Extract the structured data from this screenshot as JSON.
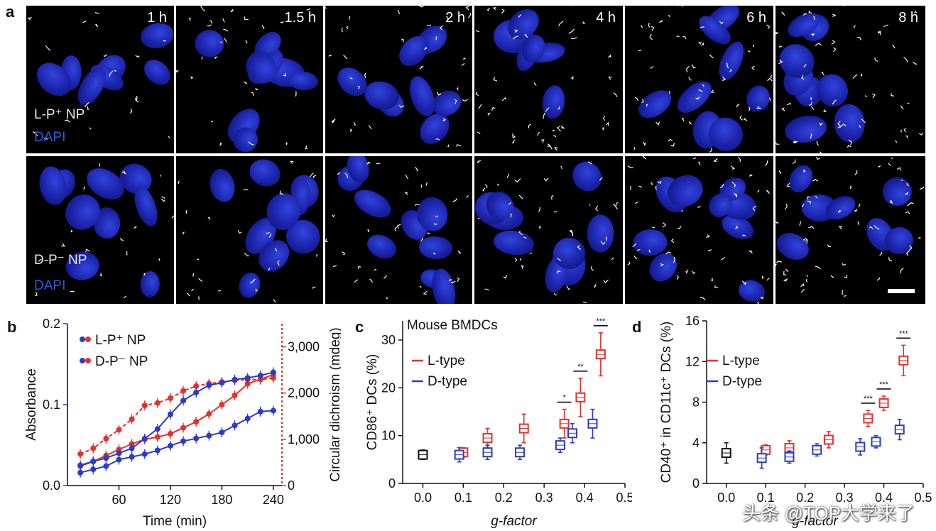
{
  "panels": {
    "a": {
      "letter": "a",
      "times": [
        "1 h",
        "1.5 h",
        "2 h",
        "4 h",
        "6 h",
        "8 h"
      ],
      "row1_label1": "L-P⁺ NP",
      "row1_label2": "DAPI",
      "row2_label1": "D-P⁻ NP",
      "row2_label2": "DAPI"
    },
    "b": {
      "letter": "b"
    },
    "c": {
      "letter": "c"
    },
    "d": {
      "letter": "d"
    }
  },
  "colors": {
    "red": "#e8302a",
    "blue": "#2b3bc8",
    "black": "#111111"
  },
  "watermark": "头条 @TOP大学来了",
  "chart_data": [
    {
      "id": "b",
      "type": "line",
      "title": "",
      "xlabel": "Time (min)",
      "ylabel_left": "Absorbance",
      "ylabel_right": "Circular dichroism (mdeg)",
      "xlim": [
        0,
        250
      ],
      "ylim_left": [
        0,
        0.2
      ],
      "ylim_right": [
        0,
        3500
      ],
      "xticks": [
        60,
        120,
        180,
        240
      ],
      "xtick_labels": [
        "60",
        "120",
        "180",
        "240"
      ],
      "yticks_left": [
        0.0,
        0.1,
        0.2
      ],
      "ytick_labels_left": [
        "0.0",
        "0.1",
        "0.2"
      ],
      "yticks_right": [
        0,
        1000,
        2000,
        3000
      ],
      "ytick_labels_right": [
        "0",
        "1,000",
        "2,000",
        "3,000"
      ],
      "legend": [
        "L-P⁺ NP",
        "D-P⁻ NP"
      ],
      "x": [
        15,
        30,
        45,
        60,
        75,
        90,
        105,
        120,
        135,
        150,
        165,
        180,
        195,
        210,
        225,
        240
      ],
      "series": [
        {
          "name": "L-P⁺ NP absorbance",
          "color": "red",
          "axis": "left",
          "style": "dashed",
          "values": [
            0.039,
            0.046,
            0.058,
            0.069,
            0.082,
            0.099,
            0.102,
            0.108,
            0.117,
            0.123,
            0.126,
            0.128,
            0.13,
            0.131,
            0.131,
            0.133
          ]
        },
        {
          "name": "L-P⁺ NP CD",
          "color": "red",
          "axis": "right",
          "style": "solid",
          "values": [
            420,
            520,
            650,
            780,
            900,
            1000,
            1050,
            1120,
            1250,
            1380,
            1550,
            1750,
            1950,
            2200,
            2300,
            2400
          ]
        },
        {
          "name": "D-P⁻ NP absorbance",
          "color": "blue",
          "axis": "left",
          "style": "solid",
          "values": [
            0.025,
            0.03,
            0.034,
            0.04,
            0.046,
            0.058,
            0.07,
            0.088,
            0.105,
            0.115,
            0.124,
            0.127,
            0.131,
            0.133,
            0.136,
            0.14
          ]
        },
        {
          "name": "D-P⁻ NP CD",
          "color": "blue",
          "axis": "right",
          "style": "solid",
          "values": [
            280,
            350,
            420,
            560,
            620,
            680,
            760,
            860,
            960,
            1020,
            1080,
            1150,
            1300,
            1450,
            1600,
            1620
          ]
        }
      ]
    },
    {
      "id": "c",
      "type": "scatter",
      "title": "Mouse BMDCs",
      "xlabel": "g-factor",
      "ylabel": "CD86⁺ DCs (%)",
      "xlim": [
        -0.05,
        0.5
      ],
      "ylim": [
        0,
        34
      ],
      "xticks": [
        0.0,
        0.1,
        0.2,
        0.3,
        0.4,
        0.5
      ],
      "xtick_labels": [
        "0.0",
        "0.1",
        "0.2",
        "0.3",
        "0.4",
        "0.5"
      ],
      "yticks": [
        0,
        10,
        20,
        30
      ],
      "ytick_labels": [
        "0",
        "10",
        "20",
        "30"
      ],
      "legend": [
        "L-type",
        "D-type"
      ],
      "significance": [
        "*",
        "**",
        "***"
      ],
      "series": [
        {
          "name": "control",
          "color": "black",
          "points": [
            {
              "x": 0.0,
              "y": 6,
              "err": 1
            }
          ]
        },
        {
          "name": "L-type",
          "color": "red",
          "points": [
            {
              "x": 0.1,
              "y": 6.5,
              "err": 1
            },
            {
              "x": 0.16,
              "y": 9.5,
              "err": 2
            },
            {
              "x": 0.25,
              "y": 11.5,
              "err": 3
            },
            {
              "x": 0.35,
              "y": 12.5,
              "err": 3
            },
            {
              "x": 0.39,
              "y": 18,
              "err": 4
            },
            {
              "x": 0.44,
              "y": 27,
              "err": 4.5
            }
          ]
        },
        {
          "name": "D-type",
          "color": "blue",
          "points": [
            {
              "x": 0.09,
              "y": 6,
              "err": 1.5
            },
            {
              "x": 0.16,
              "y": 6.5,
              "err": 1.5
            },
            {
              "x": 0.24,
              "y": 6.5,
              "err": 1.5
            },
            {
              "x": 0.34,
              "y": 8,
              "err": 1.5
            },
            {
              "x": 0.37,
              "y": 10.5,
              "err": 2
            },
            {
              "x": 0.42,
              "y": 12.5,
              "err": 3
            }
          ]
        }
      ]
    },
    {
      "id": "d",
      "type": "scatter",
      "title": "",
      "xlabel": "g-factor",
      "ylabel": "CD40⁺ in CD11c⁺ DCs (%)",
      "xlim": [
        -0.05,
        0.5
      ],
      "ylim": [
        0,
        16
      ],
      "xticks": [
        0.0,
        0.1,
        0.2,
        0.3,
        0.4,
        0.5
      ],
      "xtick_labels": [
        "0.0",
        "0.1",
        "0.2",
        "0.3",
        "0.4",
        "0.5"
      ],
      "yticks": [
        0,
        4,
        8,
        12,
        16
      ],
      "ytick_labels": [
        "0",
        "4",
        "8",
        "12",
        "16"
      ],
      "legend": [
        "L-type",
        "D-type"
      ],
      "significance": [
        "***",
        "***",
        "***"
      ],
      "series": [
        {
          "name": "control",
          "color": "black",
          "points": [
            {
              "x": 0.0,
              "y": 3,
              "err": 1
            }
          ]
        },
        {
          "name": "L-type",
          "color": "red",
          "points": [
            {
              "x": 0.1,
              "y": 3.3,
              "err": 0.5
            },
            {
              "x": 0.16,
              "y": 3.5,
              "err": 0.7
            },
            {
              "x": 0.26,
              "y": 4.3,
              "err": 0.8
            },
            {
              "x": 0.36,
              "y": 6.4,
              "err": 0.8
            },
            {
              "x": 0.4,
              "y": 7.9,
              "err": 0.7
            },
            {
              "x": 0.45,
              "y": 12.1,
              "err": 1.5
            }
          ]
        },
        {
          "name": "D-type",
          "color": "blue",
          "points": [
            {
              "x": 0.09,
              "y": 2.5,
              "err": 1
            },
            {
              "x": 0.16,
              "y": 2.6,
              "err": 0.6
            },
            {
              "x": 0.23,
              "y": 3.3,
              "err": 0.6
            },
            {
              "x": 0.34,
              "y": 3.6,
              "err": 0.8
            },
            {
              "x": 0.38,
              "y": 4.1,
              "err": 0.6
            },
            {
              "x": 0.44,
              "y": 5.3,
              "err": 1
            }
          ]
        }
      ]
    }
  ]
}
